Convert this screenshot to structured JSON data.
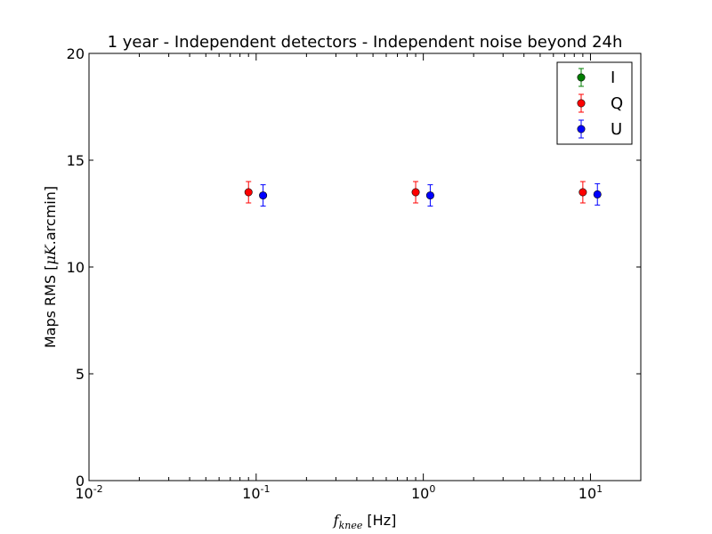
{
  "chart_data": {
    "type": "scatter",
    "title": "1 year - Independent detectors - Independent noise beyond 24h",
    "xlabel_math": "f",
    "xlabel_sub": "knee",
    "xlabel_unit": " [Hz]",
    "ylabel_prefix": "Maps RMS [",
    "ylabel_mu": "μK",
    "ylabel_suffix": ".arcmin]",
    "x_scale": "log",
    "xlim": [
      0.01,
      20
    ],
    "ylim": [
      0,
      20
    ],
    "x_ticks": [
      {
        "value": 0.01,
        "base": "10",
        "exp": "-2"
      },
      {
        "value": 0.1,
        "base": "10",
        "exp": "-1"
      },
      {
        "value": 1,
        "base": "10",
        "exp": "0"
      },
      {
        "value": 10,
        "base": "10",
        "exp": "1"
      }
    ],
    "y_ticks": [
      0,
      5,
      10,
      15,
      20
    ],
    "legend_position": "top-right",
    "series": [
      {
        "name": "I",
        "color": "#007f00",
        "points": []
      },
      {
        "name": "Q",
        "color": "#ff0000",
        "points": [
          {
            "x": 0.09,
            "y": 13.5,
            "err": 0.5
          },
          {
            "x": 0.9,
            "y": 13.5,
            "err": 0.5
          },
          {
            "x": 9.0,
            "y": 13.5,
            "err": 0.5
          }
        ]
      },
      {
        "name": "U",
        "color": "#0000ff",
        "points": [
          {
            "x": 0.11,
            "y": 13.35,
            "err": 0.5
          },
          {
            "x": 1.1,
            "y": 13.35,
            "err": 0.5
          },
          {
            "x": 11.0,
            "y": 13.4,
            "err": 0.5
          }
        ]
      }
    ]
  }
}
